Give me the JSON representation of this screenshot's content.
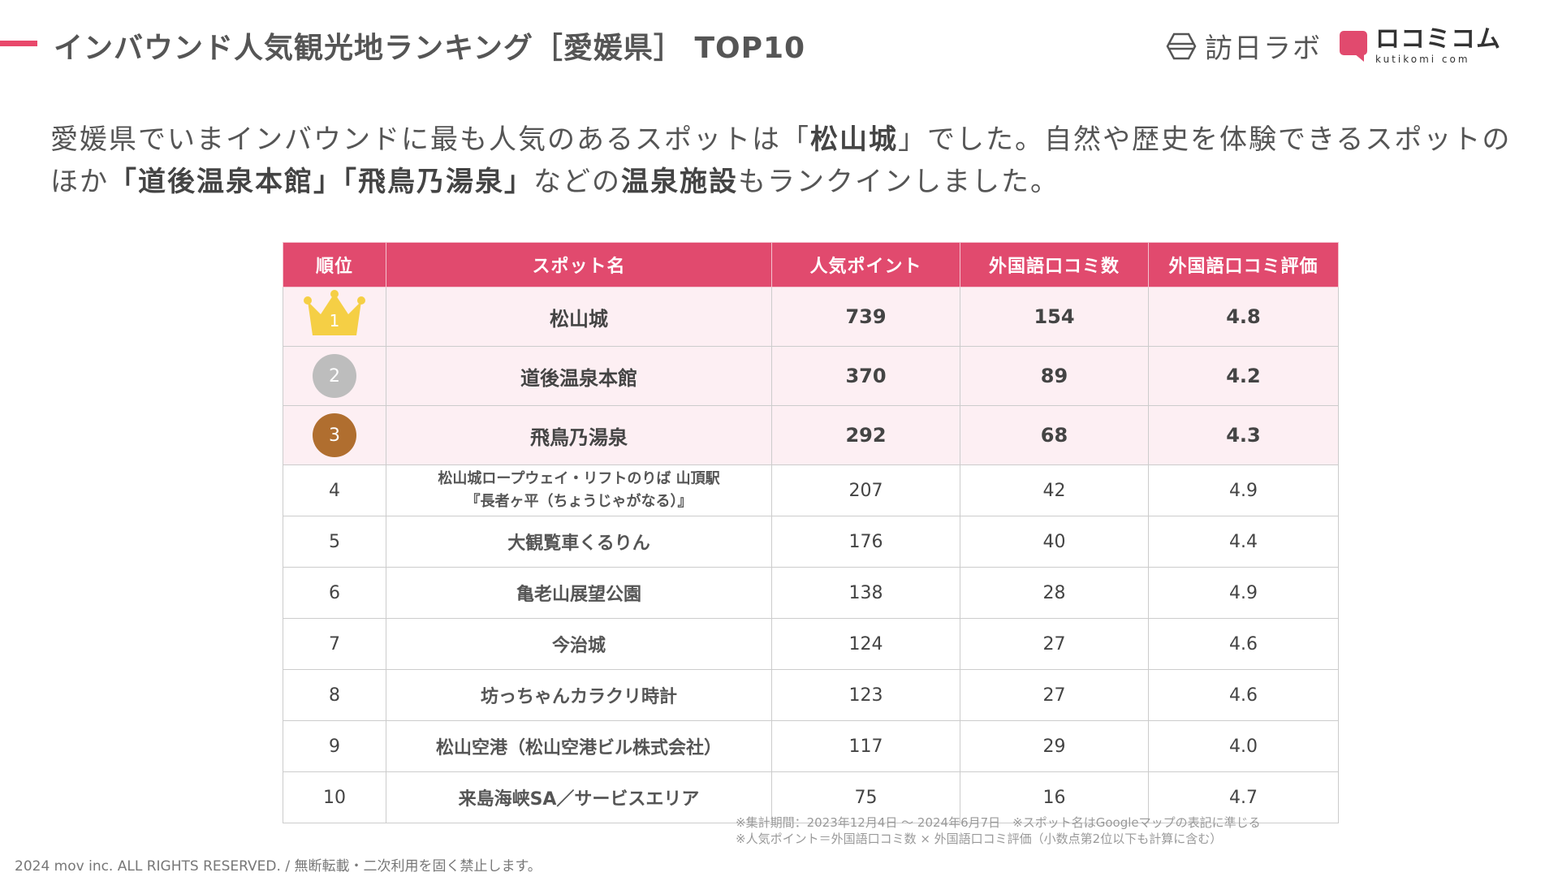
{
  "header": {
    "title": "インバウンド人気観光地ランキング［愛媛県］ TOP10",
    "accent_color": "#e8486b",
    "logos": {
      "houjin_lab": "訪日ラボ",
      "kuchikomi_name": "ロコミコム",
      "kuchikomi_sub": "kutikomi com"
    }
  },
  "intro": {
    "p1": "愛媛県でいまインバウンドに最も人気のあるスポットは「",
    "b1": "松山城",
    "p2": "」でした。自然や歴史を体験できるスポットのほか",
    "b2": "「道後温泉本館」「飛鳥乃湯泉」",
    "p3": "などの",
    "b3": "温泉施設",
    "p4": "もランクインしました。"
  },
  "table": {
    "header_color": "#e14a6e",
    "columns": [
      "順位",
      "スポット名",
      "人気ポイント",
      "外国語口コミ数",
      "外国語口コミ評価"
    ],
    "rows": [
      {
        "rank": "1",
        "name": "松山城",
        "points": "739",
        "reviews": "154",
        "rating": "4.8"
      },
      {
        "rank": "2",
        "name": "道後温泉本館",
        "points": "370",
        "reviews": "89",
        "rating": "4.2"
      },
      {
        "rank": "3",
        "name": "飛鳥乃湯泉",
        "points": "292",
        "reviews": "68",
        "rating": "4.3"
      },
      {
        "rank": "4",
        "name_line1": "松山城ロープウェイ・リフトのりば 山頂駅",
        "name_line2": "『長者ヶ平（ちょうじゃがなる）』",
        "points": "207",
        "reviews": "42",
        "rating": "4.9"
      },
      {
        "rank": "5",
        "name": "大観覧車くるりん",
        "points": "176",
        "reviews": "40",
        "rating": "4.4"
      },
      {
        "rank": "6",
        "name": "亀老山展望公園",
        "points": "138",
        "reviews": "28",
        "rating": "4.9"
      },
      {
        "rank": "7",
        "name": "今治城",
        "points": "124",
        "reviews": "27",
        "rating": "4.6"
      },
      {
        "rank": "8",
        "name": "坊っちゃんカラクリ時計",
        "points": "123",
        "reviews": "27",
        "rating": "4.6"
      },
      {
        "rank": "9",
        "name": "松山空港（松山空港ビル株式会社）",
        "points": "117",
        "reviews": "29",
        "rating": "4.0"
      },
      {
        "rank": "10",
        "name": "来島海峡SA／サービスエリア",
        "points": "75",
        "reviews": "16",
        "rating": "4.7"
      }
    ]
  },
  "notes": {
    "line1": "※集計期間：2023年12月4日 〜 2024年6月7日　※スポット名はGoogleマップの表記に準じる",
    "line2": "※人気ポイント＝外国語口コミ数 × 外国語口コミ評価（小数点第2位以下も計算に含む）"
  },
  "footer": {
    "copyright": "2024 mov inc. ALL RIGHTS RESERVED. / 無断転載・二次利用を固く禁止します。"
  }
}
